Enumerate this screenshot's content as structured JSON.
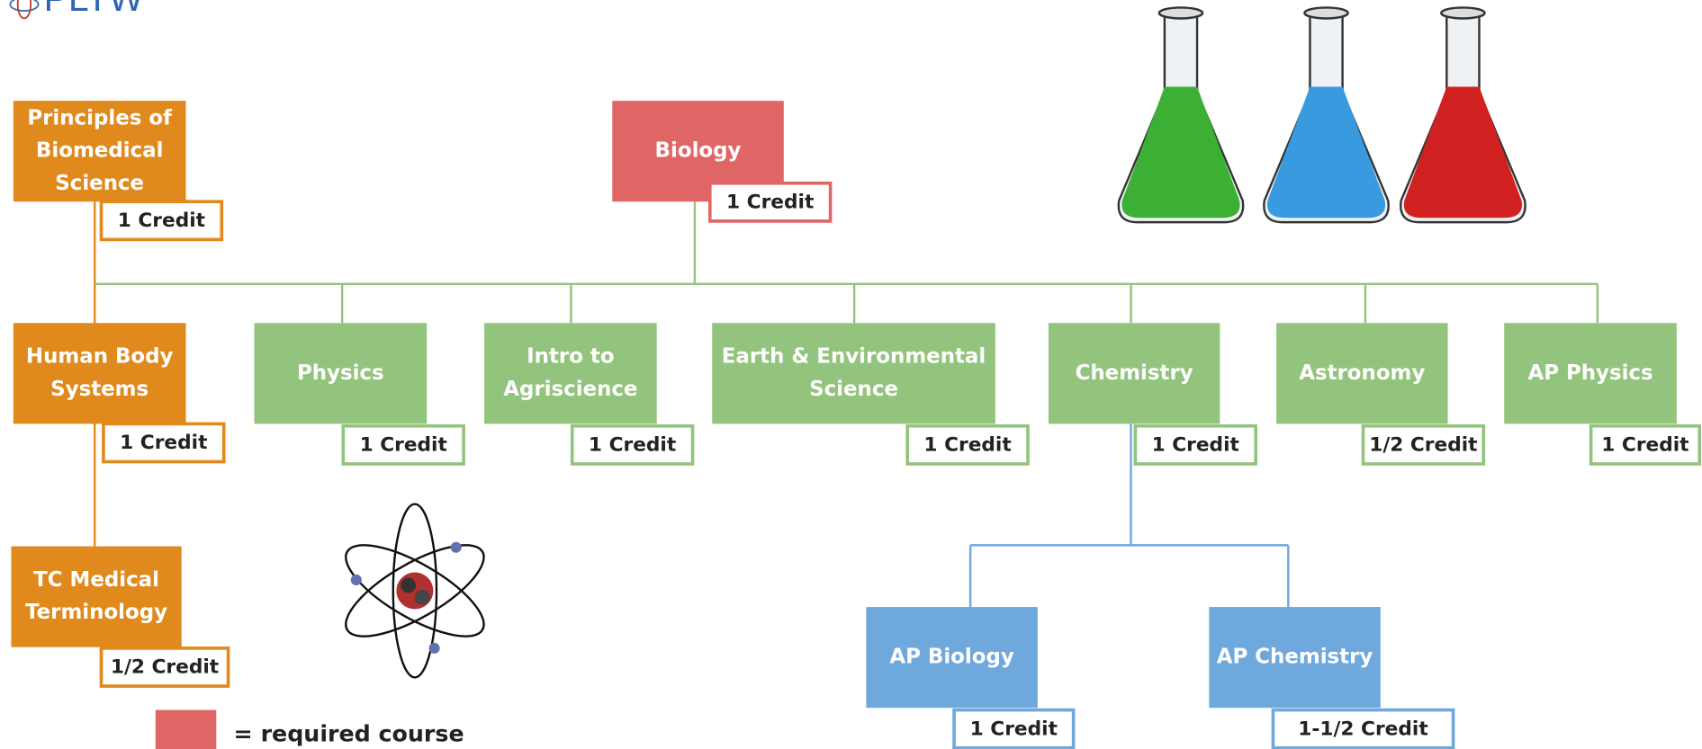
{
  "logo": "PLTW",
  "nodes": [
    {
      "label": [
        "Principles of",
        "Biomedical",
        "Science"
      ],
      "credit": "1 Credit"
    },
    {
      "label": [
        "Human Body",
        "Systems"
      ],
      "credit": "1 Credit"
    },
    {
      "label": [
        "TC Medical",
        "Terminology"
      ],
      "credit": "1/2 Credit"
    },
    {
      "label": [
        "Biology"
      ],
      "credit": "1 Credit"
    },
    {
      "label": [
        "Physics"
      ],
      "credit": "1 Credit"
    },
    {
      "label": [
        "Intro to",
        "Agriscience"
      ],
      "credit": "1 Credit"
    },
    {
      "label": [
        "Earth & Environmental",
        "Science"
      ],
      "credit": "1 Credit"
    },
    {
      "label": [
        "Chemistry"
      ],
      "credit": "1 Credit"
    },
    {
      "label": [
        "Astronomy"
      ],
      "credit": "1/2 Credit"
    },
    {
      "label": [
        "AP Physics"
      ],
      "credit": "1 Credit"
    },
    {
      "label": [
        "AP Biology"
      ],
      "credit": "1 Credit"
    },
    {
      "label": [
        "AP Chemistry"
      ],
      "credit": "1-1/2 Credit"
    }
  ],
  "legend": "= required course"
}
